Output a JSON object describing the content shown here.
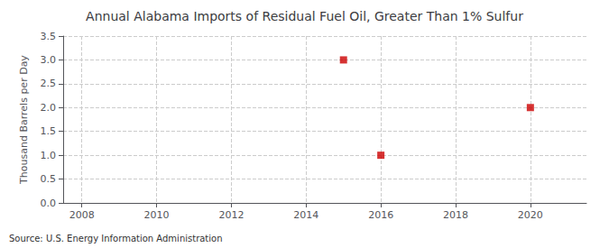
{
  "chart_data": {
    "type": "scatter",
    "title": "Annual Alabama Imports of Residual Fuel Oil, Greater Than 1% Sulfur",
    "ylabel": "Thousand Barrels per Day",
    "annotation": "Source: U.S. Energy Information Administration",
    "x": [
      2015,
      2016,
      2020
    ],
    "values": [
      3.0,
      1.0,
      2.0
    ],
    "color": "#cc0000",
    "marker": "square",
    "xlim": [
      2007.5,
      2021.5
    ],
    "xticks": [
      2008,
      2010,
      2012,
      2014,
      2016,
      2018,
      2020
    ],
    "ylim": [
      0,
      3.5
    ],
    "yticks": [
      {
        "value": 0,
        "label": "0.0"
      },
      0.5,
      {
        "value": 1,
        "label": "1.0"
      },
      1.5,
      {
        "value": 2,
        "label": "2.0"
      },
      2.5,
      {
        "value": 3,
        "label": "3.0"
      },
      3.5
    ],
    "grid": true
  }
}
